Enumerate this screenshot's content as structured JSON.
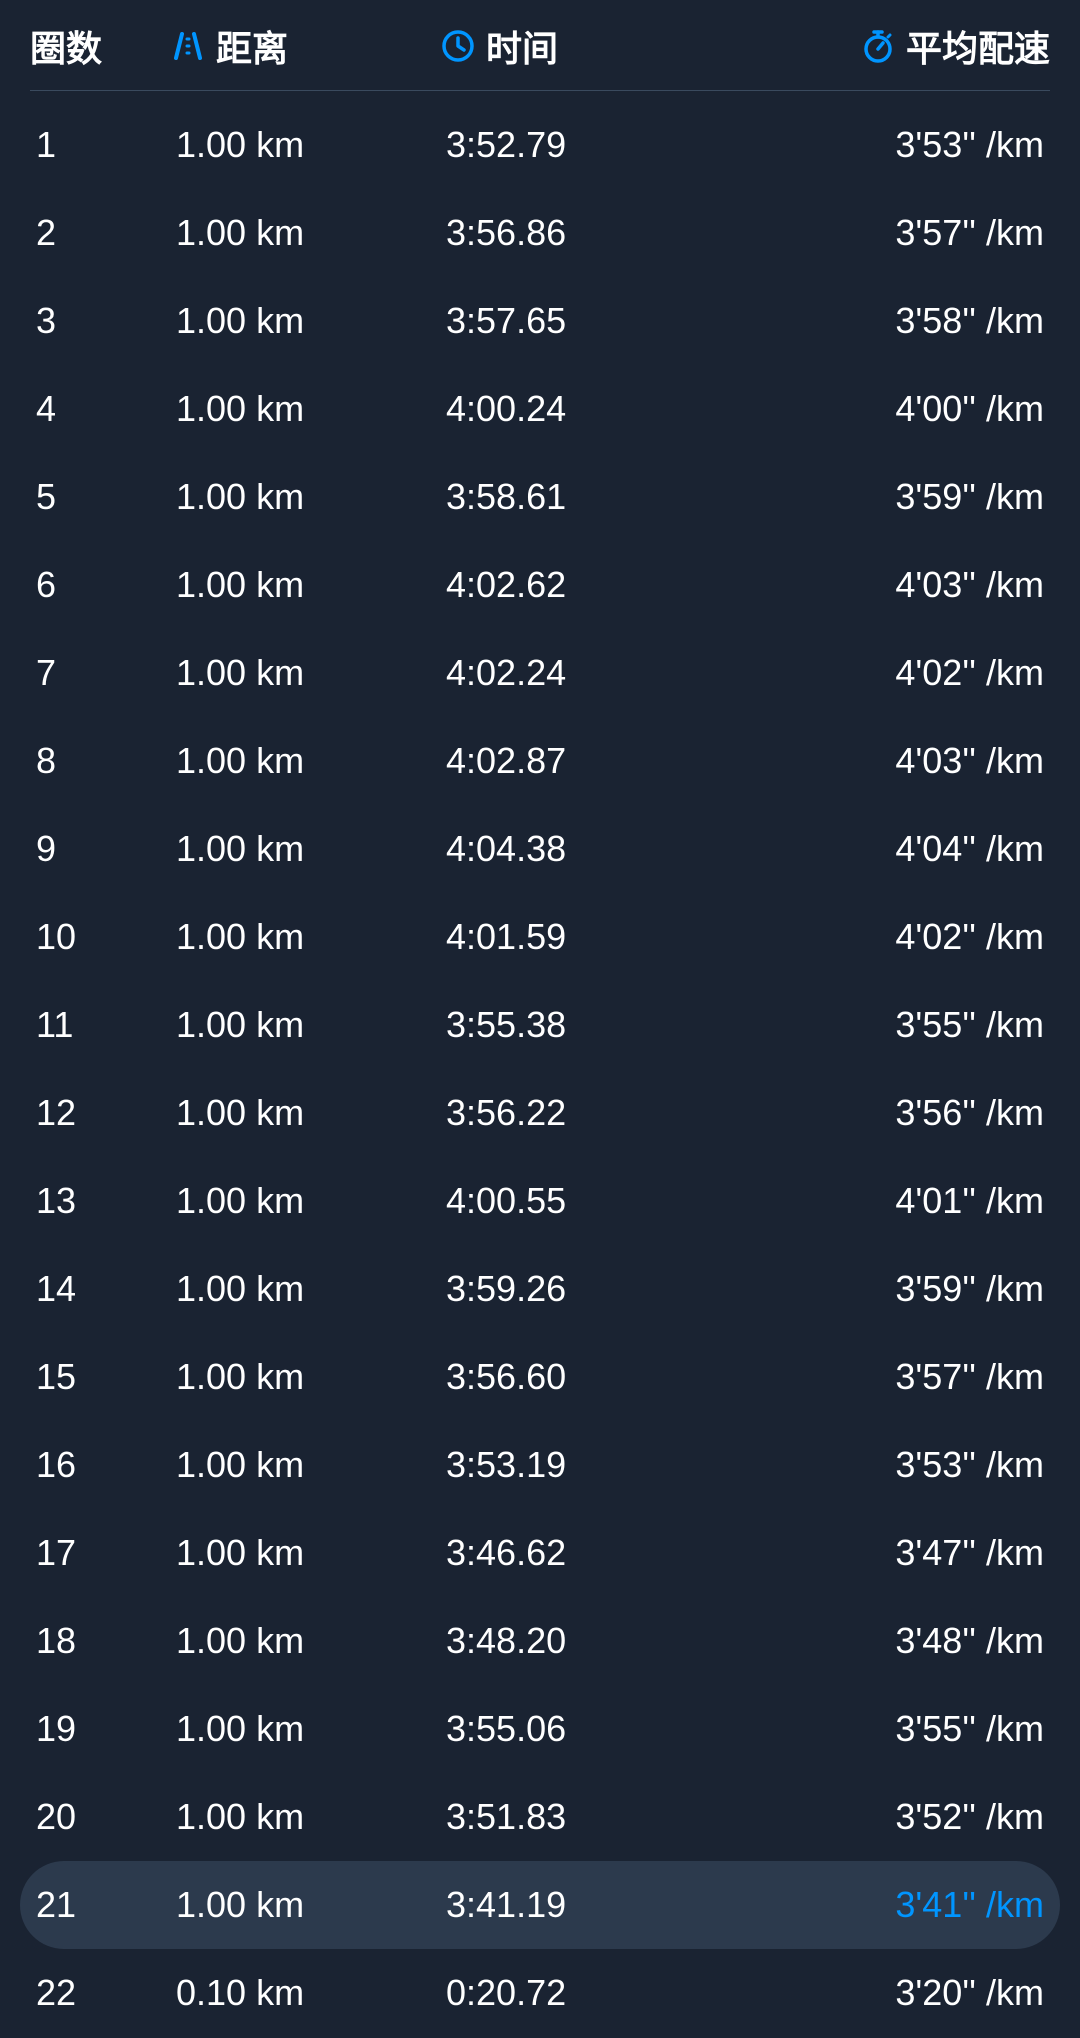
{
  "colors": {
    "background": "#1a2332",
    "text": "#ffffff",
    "accent": "#0095ff",
    "divider": "#3a4a5e",
    "highlight_bg": "#2c3a4d"
  },
  "header": {
    "lap_label": "圈数",
    "distance_label": "距离",
    "time_label": "时间",
    "pace_label": "平均配速"
  },
  "laps": [
    {
      "number": "1",
      "distance": "1.00 km",
      "time": "3:52.79",
      "pace": "3'53'' /km",
      "highlighted": false
    },
    {
      "number": "2",
      "distance": "1.00 km",
      "time": "3:56.86",
      "pace": "3'57'' /km",
      "highlighted": false
    },
    {
      "number": "3",
      "distance": "1.00 km",
      "time": "3:57.65",
      "pace": "3'58'' /km",
      "highlighted": false
    },
    {
      "number": "4",
      "distance": "1.00 km",
      "time": "4:00.24",
      "pace": "4'00'' /km",
      "highlighted": false
    },
    {
      "number": "5",
      "distance": "1.00 km",
      "time": "3:58.61",
      "pace": "3'59'' /km",
      "highlighted": false
    },
    {
      "number": "6",
      "distance": "1.00 km",
      "time": "4:02.62",
      "pace": "4'03'' /km",
      "highlighted": false
    },
    {
      "number": "7",
      "distance": "1.00 km",
      "time": "4:02.24",
      "pace": "4'02'' /km",
      "highlighted": false
    },
    {
      "number": "8",
      "distance": "1.00 km",
      "time": "4:02.87",
      "pace": "4'03'' /km",
      "highlighted": false
    },
    {
      "number": "9",
      "distance": "1.00 km",
      "time": "4:04.38",
      "pace": "4'04'' /km",
      "highlighted": false
    },
    {
      "number": "10",
      "distance": "1.00 km",
      "time": "4:01.59",
      "pace": "4'02'' /km",
      "highlighted": false
    },
    {
      "number": "11",
      "distance": "1.00 km",
      "time": "3:55.38",
      "pace": "3'55'' /km",
      "highlighted": false
    },
    {
      "number": "12",
      "distance": "1.00 km",
      "time": "3:56.22",
      "pace": "3'56'' /km",
      "highlighted": false
    },
    {
      "number": "13",
      "distance": "1.00 km",
      "time": "4:00.55",
      "pace": "4'01'' /km",
      "highlighted": false
    },
    {
      "number": "14",
      "distance": "1.00 km",
      "time": "3:59.26",
      "pace": "3'59'' /km",
      "highlighted": false
    },
    {
      "number": "15",
      "distance": "1.00 km",
      "time": "3:56.60",
      "pace": "3'57'' /km",
      "highlighted": false
    },
    {
      "number": "16",
      "distance": "1.00 km",
      "time": "3:53.19",
      "pace": "3'53'' /km",
      "highlighted": false
    },
    {
      "number": "17",
      "distance": "1.00 km",
      "time": "3:46.62",
      "pace": "3'47'' /km",
      "highlighted": false
    },
    {
      "number": "18",
      "distance": "1.00 km",
      "time": "3:48.20",
      "pace": "3'48'' /km",
      "highlighted": false
    },
    {
      "number": "19",
      "distance": "1.00 km",
      "time": "3:55.06",
      "pace": "3'55'' /km",
      "highlighted": false
    },
    {
      "number": "20",
      "distance": "1.00 km",
      "time": "3:51.83",
      "pace": "3'52'' /km",
      "highlighted": false
    },
    {
      "number": "21",
      "distance": "1.00 km",
      "time": "3:41.19",
      "pace": "3'41'' /km",
      "highlighted": true
    },
    {
      "number": "22",
      "distance": "0.10 km",
      "time": "0:20.72",
      "pace": "3'20'' /km",
      "highlighted": false
    }
  ]
}
